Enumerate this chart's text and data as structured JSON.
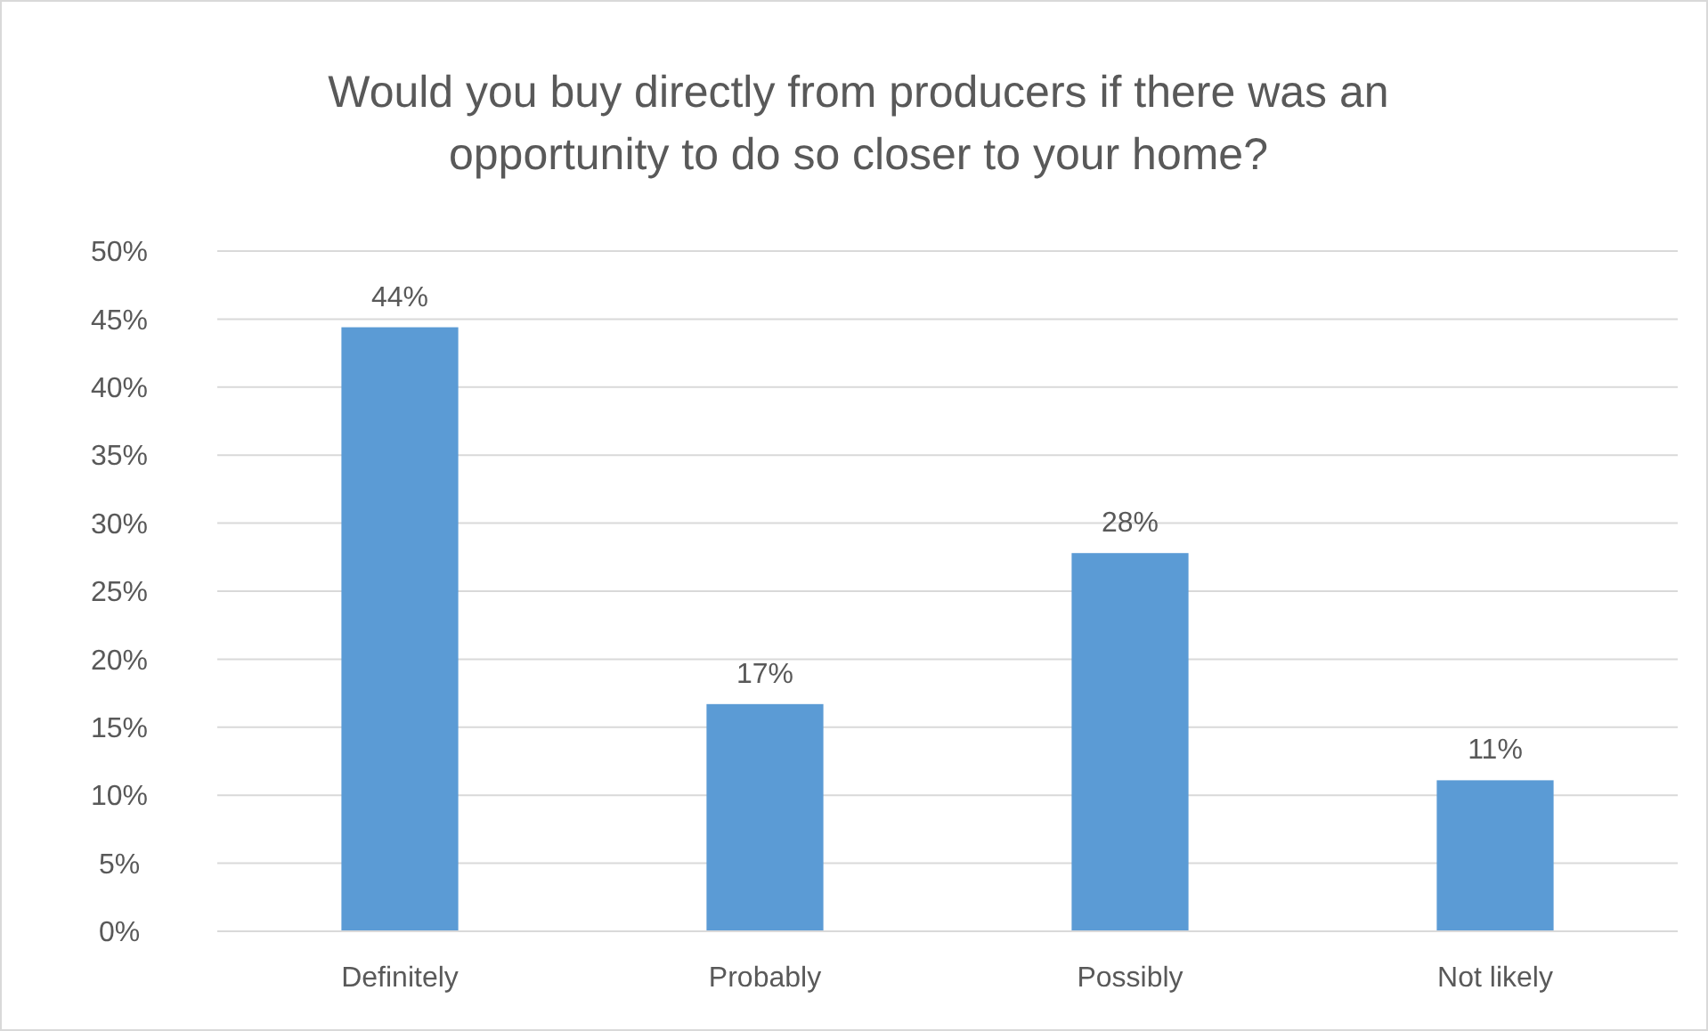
{
  "chart_data": {
    "type": "bar",
    "title": "Would you buy directly from producers if there was an opportunity to do so closer to your home?",
    "categories": [
      "Definitely",
      "Probably",
      "Possibly",
      "Not likely"
    ],
    "values": [
      44.4,
      16.7,
      27.8,
      11.1
    ],
    "value_labels": [
      "44%",
      "17%",
      "28%",
      "11%"
    ],
    "color": "#5b9bd5",
    "ylim": [
      0,
      50
    ],
    "yticks": [
      {
        "value": 0,
        "label": "0%"
      },
      {
        "value": 5,
        "label": "5%"
      },
      {
        "value": 10,
        "label": "10%"
      },
      {
        "value": 15,
        "label": "15%"
      },
      {
        "value": 20,
        "label": "20%"
      },
      {
        "value": 25,
        "label": "25%"
      },
      {
        "value": 30,
        "label": "30%"
      },
      {
        "value": 35,
        "label": "35%"
      },
      {
        "value": 40,
        "label": "40%"
      },
      {
        "value": 45,
        "label": "45%"
      },
      {
        "value": 50,
        "label": "50%"
      }
    ],
    "grid": "y"
  }
}
